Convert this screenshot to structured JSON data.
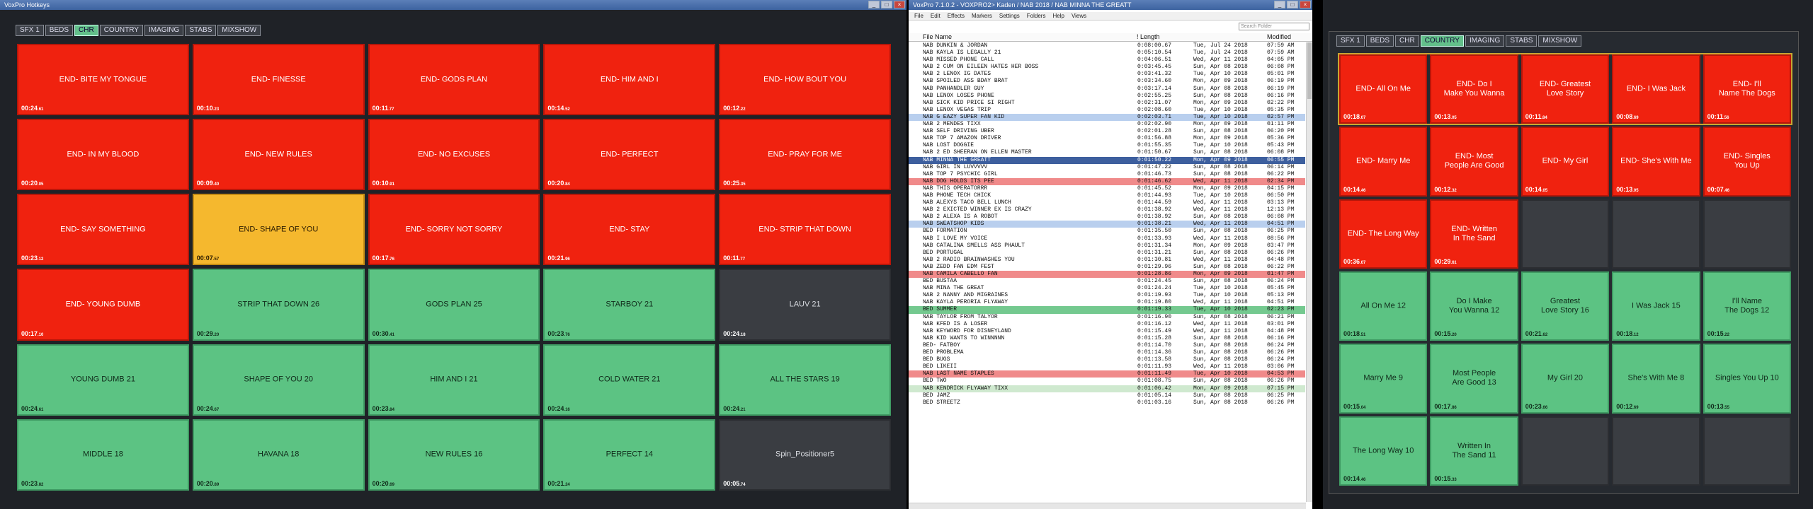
{
  "left": {
    "title": "VoxPro Hotkeys",
    "tabs": [
      {
        "label": "SFX 1",
        "active": false
      },
      {
        "label": "BEDS",
        "active": false
      },
      {
        "label": "CHR",
        "active": true
      },
      {
        "label": "COUNTRY",
        "active": false
      },
      {
        "label": "IMAGING",
        "active": false
      },
      {
        "label": "STABS",
        "active": false
      },
      {
        "label": "MIXSHOW",
        "active": false
      }
    ],
    "cells": [
      {
        "label": "END- BITE MY TONGUE",
        "time": "00:24",
        "frac": ".61",
        "color": "red"
      },
      {
        "label": "END- FINESSE",
        "time": "00:10",
        "frac": ".23",
        "color": "red"
      },
      {
        "label": "END- GODS PLAN",
        "time": "00:11",
        "frac": ".77",
        "color": "red"
      },
      {
        "label": "END- HIM AND I",
        "time": "00:14",
        "frac": ".52",
        "color": "red"
      },
      {
        "label": "END- HOW BOUT YOU",
        "time": "00:12",
        "frac": ".22",
        "color": "red"
      },
      {
        "label": "END- IN MY BLOOD",
        "time": "00:20",
        "frac": ".05",
        "color": "red"
      },
      {
        "label": "END- NEW RULES",
        "time": "00:09",
        "frac": ".40",
        "color": "red"
      },
      {
        "label": "END- NO EXCUSES",
        "time": "00:10",
        "frac": ".91",
        "color": "red"
      },
      {
        "label": "END- PERFECT",
        "time": "00:20",
        "frac": ".84",
        "color": "red"
      },
      {
        "label": "END- PRAY FOR ME",
        "time": "00:25",
        "frac": ".35",
        "color": "red"
      },
      {
        "label": "END- SAY SOMETHING",
        "time": "00:23",
        "frac": ".12",
        "color": "red"
      },
      {
        "label": "END- SHAPE OF YOU",
        "time": "00:07",
        "frac": ".57",
        "color": "yellow"
      },
      {
        "label": "END- SORRY NOT SORRY",
        "time": "00:17",
        "frac": ".76",
        "color": "red"
      },
      {
        "label": "END- STAY",
        "time": "00:21",
        "frac": ".96",
        "color": "red"
      },
      {
        "label": "END- STRIP THAT DOWN",
        "time": "00:11",
        "frac": ".77",
        "color": "red"
      },
      {
        "label": "END- YOUNG DUMB",
        "time": "00:17",
        "frac": ".10",
        "color": "red"
      },
      {
        "label": "STRIP THAT DOWN 26",
        "time": "00:29",
        "frac": ".20",
        "color": "green"
      },
      {
        "label": "GODS PLAN 25",
        "time": "00:30",
        "frac": ".41",
        "color": "green"
      },
      {
        "label": "STARBOY 21",
        "time": "00:23",
        "frac": ".76",
        "color": "green"
      },
      {
        "label": "LAUV 21",
        "time": "00:24",
        "frac": ".18",
        "color": "dark"
      },
      {
        "label": "YOUNG DUMB 21",
        "time": "00:24",
        "frac": ".61",
        "color": "green"
      },
      {
        "label": "SHAPE OF YOU 20",
        "time": "00:24",
        "frac": ".67",
        "color": "green"
      },
      {
        "label": "HIM AND I 21",
        "time": "00:23",
        "frac": ".84",
        "color": "green"
      },
      {
        "label": "COLD WATER 21",
        "time": "00:24",
        "frac": ".16",
        "color": "green"
      },
      {
        "label": "ALL THE STARS 19",
        "time": "00:24",
        "frac": ".21",
        "color": "green"
      },
      {
        "label": "MIDDLE 18",
        "time": "00:23",
        "frac": ".82",
        "color": "green"
      },
      {
        "label": "HAVANA 18",
        "time": "00:20",
        "frac": ".89",
        "color": "green"
      },
      {
        "label": "NEW RULES 16",
        "time": "00:20",
        "frac": ".69",
        "color": "green"
      },
      {
        "label": "PERFECT 14",
        "time": "00:21",
        "frac": ".24",
        "color": "green"
      },
      {
        "label": "Spin_Positioner5",
        "time": "00:05",
        "frac": ".74",
        "color": "dark"
      }
    ]
  },
  "mid": {
    "title": "VoxPro 7.1.0.2 - VOXPRO2> Kaden / NAB 2018 / NAB MINNA THE GREATT",
    "menu": [
      "File",
      "Edit",
      "Effects",
      "Markers",
      "Settings",
      "Folders",
      "Help",
      "Views"
    ],
    "search_placeholder": "Search Folder",
    "columns": {
      "name": "File Name",
      "length": "! Length",
      "modified": "Modified"
    },
    "rows": [
      {
        "name": "NAB DUNKIN & JORDAN",
        "len": "0:08:00.67",
        "date": "Tue, Jul 24 2018",
        "time": "07:59 AM",
        "hl": ""
      },
      {
        "name": "NAB KAYLA IS LEGALLY 21",
        "len": "0:05:10.54",
        "date": "Tue, Jul 24 2018",
        "time": "07:59 AM",
        "hl": ""
      },
      {
        "name": "NAB MISSED PHONE CALL",
        "len": "0:04:06.51",
        "date": "Wed, Apr 11 2018",
        "time": "04:05 PM",
        "hl": ""
      },
      {
        "name": "NAB 2 CUM ON EILEEN HATES HER BOSS",
        "len": "0:03:45.45",
        "date": "Sun, Apr 08 2018",
        "time": "06:08 PM",
        "hl": ""
      },
      {
        "name": "NAB 2 LENOX IG DATES",
        "len": "0:03:41.32",
        "date": "Tue, Apr 10 2018",
        "time": "05:01 PM",
        "hl": ""
      },
      {
        "name": "NAB SPOILED ASS BDAY BRAT",
        "len": "0:03:34.60",
        "date": "Mon, Apr 09 2018",
        "time": "06:19 PM",
        "hl": ""
      },
      {
        "name": "NAB PANHANDLER GUY",
        "len": "0:03:17.14",
        "date": "Sun, Apr 08 2018",
        "time": "06:19 PM",
        "hl": ""
      },
      {
        "name": "NAB LENOX LOSES PHONE",
        "len": "0:02:55.25",
        "date": "Sun, Apr 08 2018",
        "time": "06:16 PM",
        "hl": ""
      },
      {
        "name": "NAB SICK KID PRICE SI RIGHT",
        "len": "0:02:31.07",
        "date": "Mon, Apr 09 2018",
        "time": "02:22 PM",
        "hl": ""
      },
      {
        "name": "NAB LENOX VEGAS TRIP",
        "len": "0:02:08.60",
        "date": "Tue, Apr 10 2018",
        "time": "05:35 PM",
        "hl": ""
      },
      {
        "name": "NAB G EAZY SUPER FAN KID",
        "len": "0:02:03.71",
        "date": "Tue, Apr 10 2018",
        "time": "02:57 PM",
        "hl": "blue"
      },
      {
        "name": "NAB 2 MENDES TIXX",
        "len": "0:02:02.90",
        "date": "Mon, Apr 09 2018",
        "time": "01:11 PM",
        "hl": ""
      },
      {
        "name": "NAB SELF DRIVING UBER",
        "len": "0:02:01.28",
        "date": "Sun, Apr 08 2018",
        "time": "06:20 PM",
        "hl": ""
      },
      {
        "name": "NAB TOP 7 AMAZON DRIVER",
        "len": "0:01:56.88",
        "date": "Mon, Apr 09 2018",
        "time": "05:36 PM",
        "hl": ""
      },
      {
        "name": "NAB LOST DOGGIE",
        "len": "0:01:55.35",
        "date": "Tue, Apr 10 2018",
        "time": "05:43 PM",
        "hl": ""
      },
      {
        "name": "NAB 2 ED SHEERAN ON ELLEN MASTER",
        "len": "0:01:50.67",
        "date": "Sun, Apr 08 2018",
        "time": "06:08 PM",
        "hl": ""
      },
      {
        "name": "NAB MINNA THE GREATT",
        "len": "0:01:50.22",
        "date": "Mon, Apr 09 2018",
        "time": "06:55 PM",
        "hl": "sel"
      },
      {
        "name": "NAB GIRL IN LUVVVVV",
        "len": "0:01:47.22",
        "date": "Sun, Apr 08 2018",
        "time": "06:14 PM",
        "hl": ""
      },
      {
        "name": "NAB TOP 7 PSYCHIC GIRL",
        "len": "0:01:46.73",
        "date": "Sun, Apr 08 2018",
        "time": "06:22 PM",
        "hl": ""
      },
      {
        "name": "NAB DOG HOLDS ITS PEE",
        "len": "0:01:46.62",
        "date": "Wed, Apr 11 2018",
        "time": "02:34 PM",
        "hl": "red"
      },
      {
        "name": "NAB THIS OPERATORRR",
        "len": "0:01:45.52",
        "date": "Mon, Apr 09 2018",
        "time": "04:15 PM",
        "hl": ""
      },
      {
        "name": "NAB PHONE TECH CHICK",
        "len": "0:01:44.93",
        "date": "Tue, Apr 10 2018",
        "time": "06:50 PM",
        "hl": ""
      },
      {
        "name": "NAB ALEXYS TACO BELL LUNCH",
        "len": "0:01:44.59",
        "date": "Wed, Apr 11 2018",
        "time": "03:13 PM",
        "hl": ""
      },
      {
        "name": "NAB 2 EXICTED WINNER EX IS CRAZY",
        "len": "0:01:38.92",
        "date": "Wed, Apr 11 2018",
        "time": "12:13 PM",
        "hl": ""
      },
      {
        "name": "NAB 2 ALEXA IS A ROBOT",
        "len": "0:01:38.92",
        "date": "Sun, Apr 08 2018",
        "time": "06:08 PM",
        "hl": ""
      },
      {
        "name": "NAB SWEATSHOP KIDS",
        "len": "0:01:38.21",
        "date": "Wed, Apr 11 2018",
        "time": "04:51 PM",
        "hl": "blue"
      },
      {
        "name": "BED FORMATION",
        "len": "0:01:35.50",
        "date": "Sun, Apr 08 2018",
        "time": "06:25 PM",
        "hl": ""
      },
      {
        "name": "NAB I LOVE MY VOICE",
        "len": "0:01:33.93",
        "date": "Wed, Apr 11 2018",
        "time": "08:56 PM",
        "hl": ""
      },
      {
        "name": "NAB CATALINA SMELLS ASS PHAULT",
        "len": "0:01:31.34",
        "date": "Mon, Apr 09 2018",
        "time": "03:47 PM",
        "hl": ""
      },
      {
        "name": "BED PORTUGAL",
        "len": "0:01:31.21",
        "date": "Sun, Apr 08 2018",
        "time": "06:26 PM",
        "hl": ""
      },
      {
        "name": "NAB 2 RADIO BRAINWASHES YOU",
        "len": "0:01:30.81",
        "date": "Wed, Apr 11 2018",
        "time": "04:48 PM",
        "hl": ""
      },
      {
        "name": "NAB ZEDD FAN EDM FEST",
        "len": "0:01:29.96",
        "date": "Sun, Apr 08 2018",
        "time": "06:22 PM",
        "hl": ""
      },
      {
        "name": "NAB CAMILA CABELLO FAN",
        "len": "0:01:28.86",
        "date": "Mon, Apr 09 2018",
        "time": "01:47 PM",
        "hl": "red"
      },
      {
        "name": "BED BUSTAA",
        "len": "0:01:24.45",
        "date": "Sun, Apr 08 2018",
        "time": "06:24 PM",
        "hl": ""
      },
      {
        "name": "NAB MINA THE GREAT",
        "len": "0:01:24.24",
        "date": "Tue, Apr 10 2018",
        "time": "05:45 PM",
        "hl": ""
      },
      {
        "name": "NAB 2 NANNY AND MIGRAINES",
        "len": "0:01:19.93",
        "date": "Tue, Apr 10 2018",
        "time": "05:13 PM",
        "hl": ""
      },
      {
        "name": "NAB KAYLA PERORIA FLYAWAY",
        "len": "0:01:19.80",
        "date": "Wed, Apr 11 2018",
        "time": "04:51 PM",
        "hl": ""
      },
      {
        "name": "BED SUMMER",
        "len": "0:01:19.33",
        "date": "Tue, Apr 10 2018",
        "time": "02:23 PM",
        "hl": "green"
      },
      {
        "name": "NAB TAYLOR FROM TALYOR",
        "len": "0:01:16.90",
        "date": "Sun, Apr 08 2018",
        "time": "06:21 PM",
        "hl": ""
      },
      {
        "name": "NAB KFED IS A LOSER",
        "len": "0:01:16.12",
        "date": "Wed, Apr 11 2018",
        "time": "03:01 PM",
        "hl": ""
      },
      {
        "name": "NAB KEYWORD FOR DISNEYLAND",
        "len": "0:01:15.49",
        "date": "Wed, Apr 11 2018",
        "time": "04:48 PM",
        "hl": ""
      },
      {
        "name": "NAB KID WANTS TO WINNNNN",
        "len": "0:01:15.28",
        "date": "Sun, Apr 08 2018",
        "time": "06:16 PM",
        "hl": ""
      },
      {
        "name": "BED- FATBOY",
        "len": "0:01:14.70",
        "date": "Sun, Apr 08 2018",
        "time": "06:24 PM",
        "hl": ""
      },
      {
        "name": "BED PROBLEMA",
        "len": "0:01:14.36",
        "date": "Sun, Apr 08 2018",
        "time": "06:26 PM",
        "hl": ""
      },
      {
        "name": "BED BUGS",
        "len": "0:01:13.58",
        "date": "Sun, Apr 08 2018",
        "time": "06:24 PM",
        "hl": ""
      },
      {
        "name": "BED LIKEII",
        "len": "0:01:11.93",
        "date": "Wed, Apr 11 2018",
        "time": "03:06 PM",
        "hl": ""
      },
      {
        "name": "NAB LAST NAME STAPLES",
        "len": "0:01:11.49",
        "date": "Tue, Apr 10 2018",
        "time": "04:53 PM",
        "hl": "red"
      },
      {
        "name": "BED TWO",
        "len": "0:01:08.75",
        "date": "Sun, Apr 08 2018",
        "time": "06:26 PM",
        "hl": ""
      },
      {
        "name": "NAB KENDRICK FLYAWAY TIXX",
        "len": "0:01:06.42",
        "date": "Mon, Apr 09 2018",
        "time": "07:15 PM",
        "hl": "lgreen"
      },
      {
        "name": "BED JAMZ",
        "len": "0:01:05.14",
        "date": "Sun, Apr 08 2018",
        "time": "06:25 PM",
        "hl": ""
      },
      {
        "name": "BED STREETZ",
        "len": "0:01:03.16",
        "date": "Sun, Apr 08 2018",
        "time": "06:26 PM",
        "hl": ""
      }
    ]
  },
  "right": {
    "tabs": [
      {
        "label": "SFX 1",
        "active": false
      },
      {
        "label": "BEDS",
        "active": false
      },
      {
        "label": "CHR",
        "active": false
      },
      {
        "label": "COUNTRY",
        "active": true
      },
      {
        "label": "IMAGING",
        "active": false
      },
      {
        "label": "STABS",
        "active": false
      },
      {
        "label": "MIXSHOW",
        "active": false
      }
    ],
    "cells": [
      {
        "label": "END- All On Me",
        "time": "00:18",
        "frac": ".07",
        "color": "red"
      },
      {
        "label": "END- Do I\nMake You Wanna",
        "time": "00:13",
        "frac": ".05",
        "color": "red"
      },
      {
        "label": "END- Greatest\nLove Story",
        "time": "00:11",
        "frac": ".84",
        "color": "red"
      },
      {
        "label": "END- I Was Jack",
        "time": "00:08",
        "frac": ".69",
        "color": "red"
      },
      {
        "label": "END- I'll\nName The Dogs",
        "time": "00:11",
        "frac": ".56",
        "color": "red"
      },
      {
        "label": "END- Marry Me",
        "time": "00:14",
        "frac": ".46",
        "color": "red"
      },
      {
        "label": "END- Most\nPeople Are Good",
        "time": "00:12",
        "frac": ".32",
        "color": "red"
      },
      {
        "label": "END- My Girl",
        "time": "00:14",
        "frac": ".05",
        "color": "red"
      },
      {
        "label": "END- She's With Me",
        "time": "00:13",
        "frac": ".05",
        "color": "red"
      },
      {
        "label": "END- Singles\nYou Up",
        "time": "00:07",
        "frac": ".46",
        "color": "red"
      },
      {
        "label": "END- The Long Way",
        "time": "00:36",
        "frac": ".07",
        "color": "red"
      },
      {
        "label": "END- Written\nIn The Sand",
        "time": "00:29",
        "frac": ".61",
        "color": "red"
      },
      {
        "label": "",
        "time": "",
        "frac": "",
        "color": "dark"
      },
      {
        "label": "",
        "time": "",
        "frac": "",
        "color": "dark"
      },
      {
        "label": "",
        "time": "",
        "frac": "",
        "color": "dark"
      },
      {
        "label": "All On Me 12",
        "time": "00:18",
        "frac": ".51",
        "color": "green"
      },
      {
        "label": "Do I Make\nYou Wanna 12",
        "time": "00:15",
        "frac": ".20",
        "color": "green"
      },
      {
        "label": "Greatest\nLove Story 16",
        "time": "00:21",
        "frac": ".62",
        "color": "green"
      },
      {
        "label": "I Was Jack 15",
        "time": "00:18",
        "frac": ".12",
        "color": "green"
      },
      {
        "label": "I'll Name\nThe Dogs 12",
        "time": "00:15",
        "frac": ".22",
        "color": "green"
      },
      {
        "label": "Marry Me 9",
        "time": "00:15",
        "frac": ".04",
        "color": "green"
      },
      {
        "label": "Most People\nAre Good 13",
        "time": "00:17",
        "frac": ".86",
        "color": "green"
      },
      {
        "label": "My Girl 20",
        "time": "00:23",
        "frac": ".66",
        "color": "green"
      },
      {
        "label": "She's With Me 8",
        "time": "00:12",
        "frac": ".69",
        "color": "green"
      },
      {
        "label": "Singles You Up 10",
        "time": "00:13",
        "frac": ".55",
        "color": "green"
      },
      {
        "label": "The Long Way 10",
        "time": "00:14",
        "frac": ".46",
        "color": "green"
      },
      {
        "label": "Written In\nThe Sand 11",
        "time": "00:15",
        "frac": ".33",
        "color": "green"
      },
      {
        "label": "",
        "time": "",
        "frac": "",
        "color": "dark"
      },
      {
        "label": "",
        "time": "",
        "frac": "",
        "color": "dark"
      },
      {
        "label": "",
        "time": "",
        "frac": "",
        "color": "dark"
      }
    ]
  }
}
